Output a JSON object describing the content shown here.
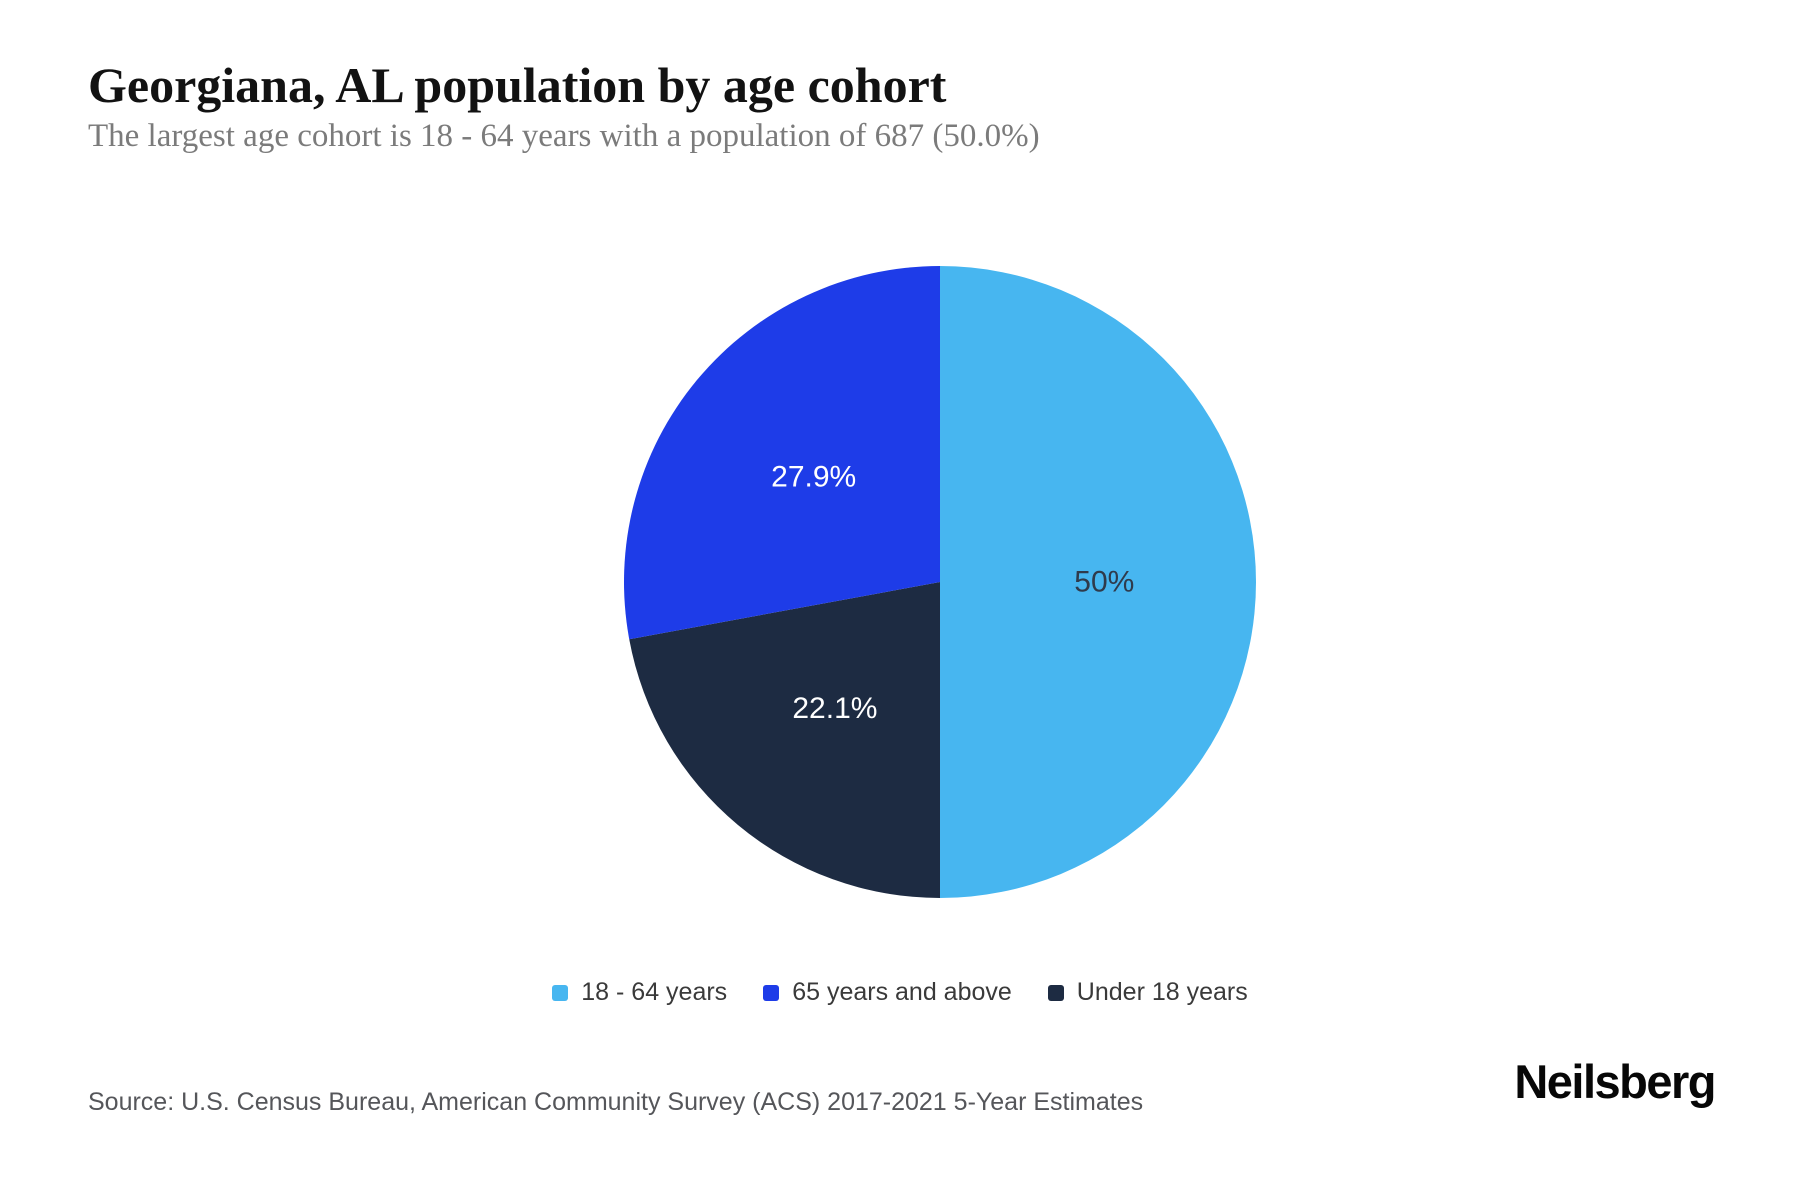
{
  "page": {
    "title": "Georgiana, AL population by age cohort",
    "subtitle": "The largest age cohort is 18 - 64 years with a population of 687 (50.0%)",
    "source": "Source: U.S. Census Bureau, American Community Survey (ACS) 2017-2021 5-Year Estimates",
    "brand": "Neilsberg"
  },
  "chart_data": {
    "type": "pie",
    "title": "Georgiana, AL population by age cohort",
    "unit": "percent of total population",
    "largest_cohort": {
      "label": "18 - 64 years",
      "population": 687,
      "pct": 50.0
    },
    "slices": [
      {
        "label": "18 - 64 years",
        "pct": 50.0,
        "display_label": "50%",
        "color": "#47b6f0",
        "label_color": "#2f3b4c"
      },
      {
        "label": "65 years and above",
        "pct": 27.9,
        "display_label": "27.9%",
        "color": "#1e3ce8",
        "label_color": "#ffffff"
      },
      {
        "label": "Under 18 years",
        "pct": 22.1,
        "display_label": "22.1%",
        "color": "#1d2b42",
        "label_color": "#ffffff"
      }
    ],
    "draw_order_clockwise_from_top": [
      0,
      2,
      1
    ],
    "legend_position": "bottom"
  }
}
